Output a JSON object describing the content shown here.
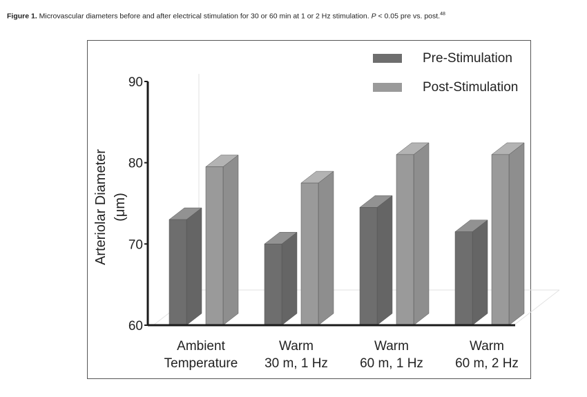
{
  "caption": {
    "label": "Figure 1.",
    "text_before": " Microvascular diameters before and after electrical stimulation for 30 or 60 min at 1 or 2 Hz stimulation. ",
    "p_symbol": "P",
    "text_after": " < 0.05 pre vs. post.",
    "ref": "48"
  },
  "chart_data": {
    "type": "bar",
    "title": "",
    "ylabel": "Arteriolar Diameter",
    "ylabel_unit": "(μm)",
    "xlabel": "",
    "ylim": [
      60,
      90
    ],
    "yticks": [
      60,
      70,
      80,
      90
    ],
    "categories": [
      {
        "line1": "Ambient",
        "line2": "Temperature"
      },
      {
        "line1": "Warm",
        "line2": "30 m, 1 Hz"
      },
      {
        "line1": "Warm",
        "line2": "60 m, 1 Hz"
      },
      {
        "line1": "Warm",
        "line2": "60 m, 2 Hz"
      }
    ],
    "series": [
      {
        "name": "Pre-Stimulation",
        "values": [
          73,
          70,
          74.5,
          71.5
        ],
        "color": "#6e6e6e"
      },
      {
        "name": "Post-Stimulation",
        "values": [
          79.5,
          77.5,
          81,
          81
        ],
        "color": "#9a9a9a"
      }
    ],
    "legend_position": "top-right",
    "grid": false,
    "style": "3d-bars"
  }
}
